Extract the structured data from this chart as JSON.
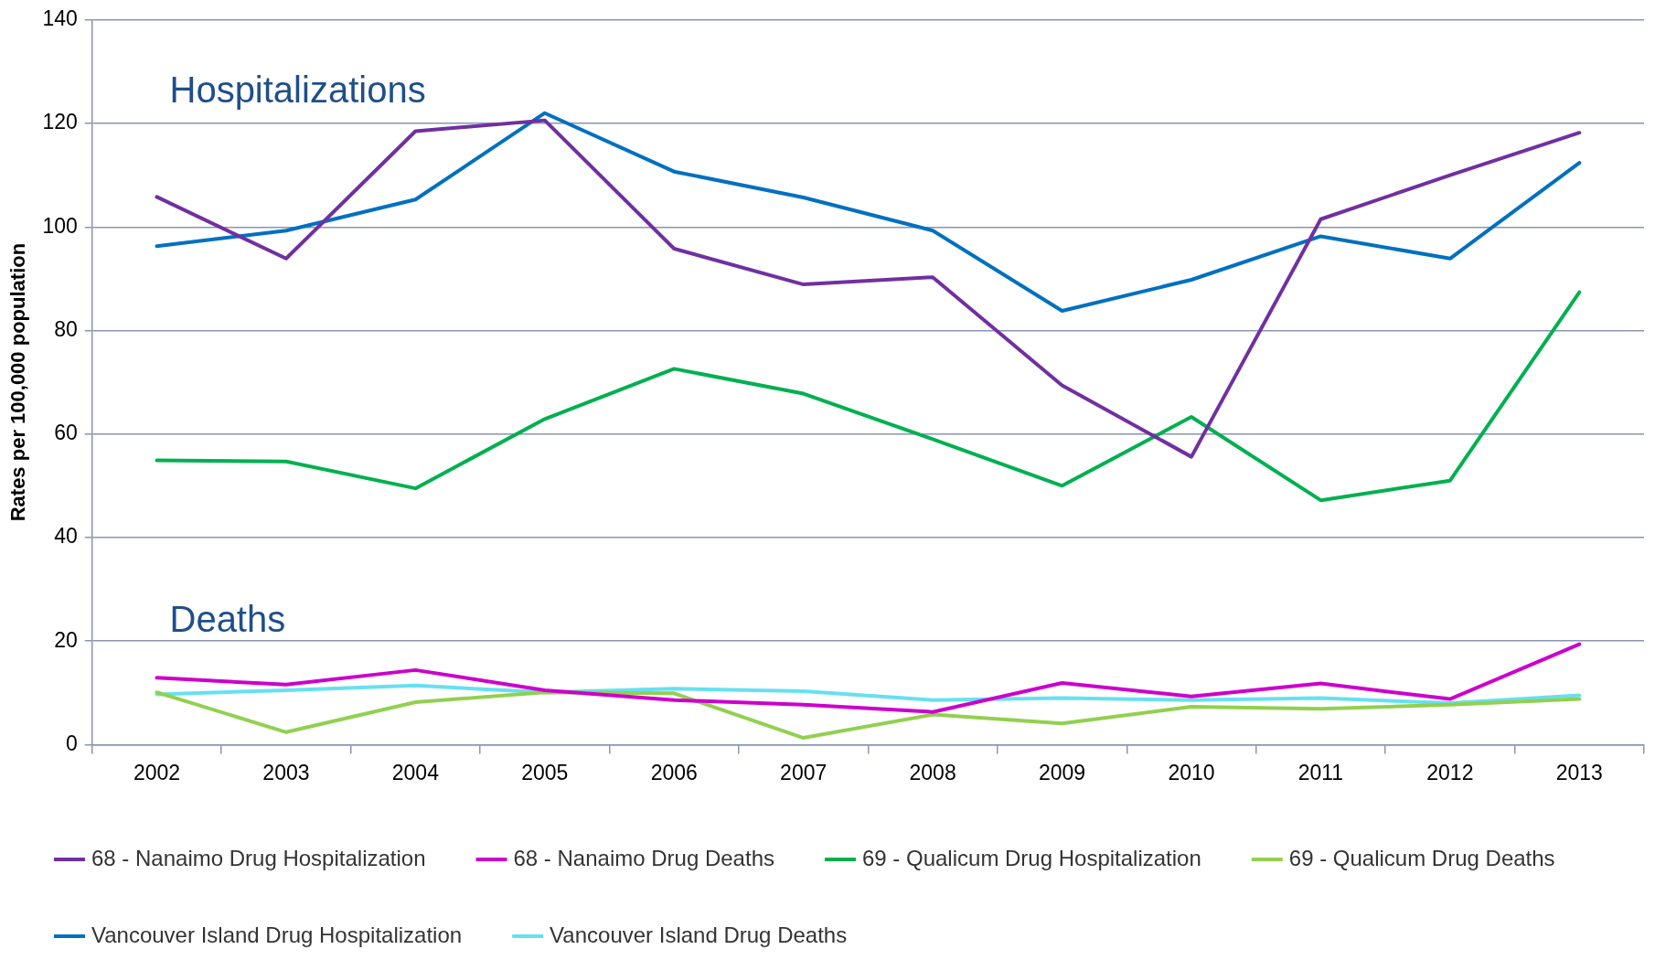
{
  "chart_data": {
    "type": "line",
    "ylabel": "Rates per 100,000 population",
    "categories": [
      "2002",
      "2003",
      "2004",
      "2005",
      "2006",
      "2007",
      "2008",
      "2009",
      "2010",
      "2011",
      "2012",
      "2013"
    ],
    "series": [
      {
        "name": "68 - Nanaimo Drug Hospitalization",
        "color": "#7030a0",
        "values": [
          105.8,
          93.9,
          118.5,
          120.6,
          95.8,
          88.9,
          90.3,
          69.4,
          55.6,
          101.5,
          110,
          118.2
        ]
      },
      {
        "name": "68 - Nanaimo Drug Deaths",
        "color": "#cc00cc",
        "values": [
          12.9,
          11.6,
          14.4,
          10.5,
          8.6,
          7.7,
          6.3,
          11.9,
          9.3,
          11.8,
          8.8,
          19.4
        ]
      },
      {
        "name": "69 - Qualicum Drug Hospitalization",
        "color": "#00b050",
        "values": [
          54.9,
          54.7,
          49.5,
          62.9,
          72.6,
          67.8,
          59,
          50,
          63.3,
          47.2,
          51,
          87.4
        ]
      },
      {
        "name": "69 - Qualicum Drug Deaths",
        "color": "#92d050",
        "values": [
          10.1,
          2.4,
          8.2,
          10.1,
          9.9,
          1.3,
          5.8,
          4.1,
          7.3,
          6.9,
          7.7,
          8.8
        ]
      },
      {
        "name": "Vancouver Island Drug Hospitalization",
        "color": "#0070c0",
        "values": [
          96.3,
          99.3,
          105.3,
          122,
          110.7,
          105.7,
          99.3,
          83.8,
          89.8,
          98.2,
          93.9,
          112.4
        ]
      },
      {
        "name": "Vancouver Island Drug Deaths",
        "color": "#66e0f0",
        "values": [
          9.7,
          10.5,
          11.4,
          10.1,
          10.8,
          10.3,
          8.6,
          9,
          8.6,
          9,
          8,
          9.5
        ]
      }
    ],
    "ylim": [
      0,
      140
    ],
    "yticks": [
      0,
      20,
      40,
      60,
      80,
      100,
      120,
      140
    ],
    "grid": "y",
    "legend": "bottom",
    "marker": "none",
    "line_style": "solid",
    "annotations": [
      "Hospitalizations",
      "Deaths"
    ]
  }
}
